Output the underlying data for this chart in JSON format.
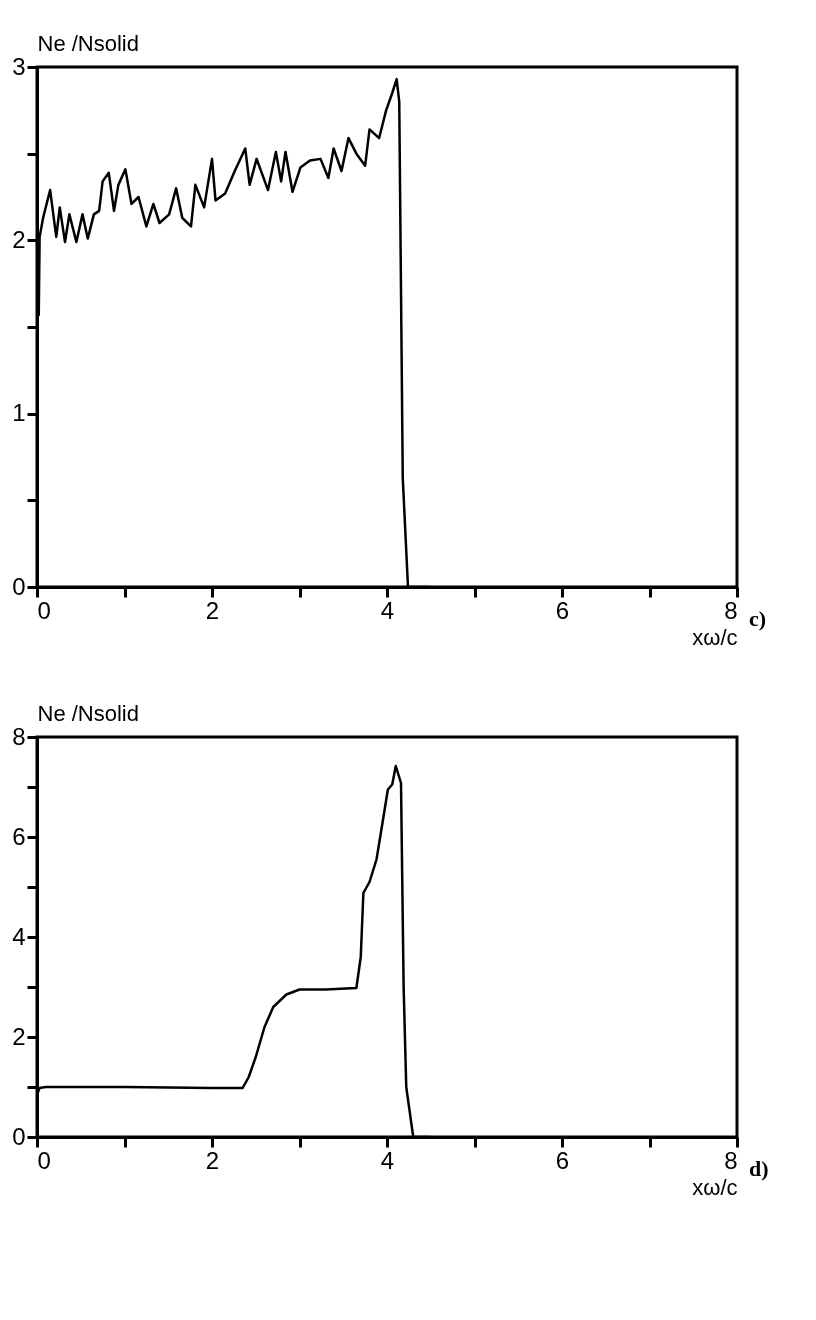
{
  "chart_data": [
    {
      "type": "line",
      "ylabel": "Ne /Nsolid",
      "xlabel": "xω/c",
      "annotations": [
        "c)"
      ],
      "grid": false,
      "x": [
        0.0,
        0.02,
        0.03,
        0.07,
        0.15,
        0.22,
        0.26,
        0.32,
        0.37,
        0.45,
        0.52,
        0.58,
        0.65,
        0.71,
        0.75,
        0.82,
        0.88,
        0.93,
        1.01,
        1.08,
        1.16,
        1.25,
        1.33,
        1.4,
        1.51,
        1.59,
        1.66,
        1.76,
        1.81,
        1.91,
        2.0,
        2.04,
        2.15,
        2.26,
        2.38,
        2.43,
        2.51,
        2.64,
        2.73,
        2.79,
        2.84,
        2.92,
        3.01,
        3.12,
        3.24,
        3.33,
        3.39,
        3.48,
        3.56,
        3.65,
        3.75,
        3.8,
        3.91,
        3.99,
        4.06,
        4.11,
        4.14,
        4.18,
        4.24,
        4.5
      ],
      "series": [
        {
          "color": "#000000",
          "values": [
            2.0,
            1.57,
            2.02,
            2.13,
            2.29,
            2.02,
            2.19,
            1.99,
            2.15,
            1.99,
            2.15,
            2.01,
            2.15,
            2.17,
            2.34,
            2.39,
            2.17,
            2.32,
            2.41,
            2.21,
            2.25,
            2.08,
            2.21,
            2.1,
            2.15,
            2.3,
            2.13,
            2.08,
            2.32,
            2.19,
            2.47,
            2.23,
            2.27,
            2.4,
            2.53,
            2.32,
            2.47,
            2.29,
            2.51,
            2.34,
            2.51,
            2.28,
            2.42,
            2.46,
            2.47,
            2.36,
            2.53,
            2.4,
            2.59,
            2.5,
            2.43,
            2.64,
            2.59,
            2.75,
            2.85,
            2.93,
            2.8,
            0.63,
            0.0,
            0.0
          ]
        }
      ],
      "xlim": [
        0,
        8
      ],
      "ylim": [
        0,
        3
      ],
      "xticks": [
        0,
        {
          "value": 1,
          "label": null
        },
        2,
        {
          "value": 3,
          "label": null
        },
        4,
        {
          "value": 5,
          "label": null
        },
        6,
        {
          "value": 7,
          "label": null
        },
        8
      ],
      "yticks": [
        0,
        {
          "value": 0.5,
          "label": null
        },
        1,
        {
          "value": 1.5,
          "label": null
        },
        2,
        {
          "value": 2.5,
          "label": null
        },
        3
      ]
    },
    {
      "type": "line",
      "ylabel": "Ne /Nsolid",
      "xlabel": "xω/c",
      "annotations": [
        "d)"
      ],
      "grid": false,
      "x": [
        0.0,
        0.03,
        0.1,
        1.0,
        2.0,
        2.35,
        2.42,
        2.5,
        2.6,
        2.7,
        2.85,
        3.0,
        3.3,
        3.65,
        3.7,
        3.73,
        3.8,
        3.88,
        3.95,
        4.01,
        4.06,
        4.1,
        4.16,
        4.19,
        4.22,
        4.3,
        4.5
      ],
      "series": [
        {
          "color": "#000000",
          "values": [
            0.85,
            0.98,
            1.0,
            1.0,
            0.98,
            0.98,
            1.2,
            1.6,
            2.2,
            2.6,
            2.85,
            2.95,
            2.95,
            2.98,
            3.6,
            4.88,
            5.1,
            5.55,
            6.3,
            6.95,
            7.05,
            7.42,
            7.08,
            3.0,
            1.0,
            0.0,
            0.0
          ]
        }
      ],
      "xlim": [
        0,
        8
      ],
      "ylim": [
        0,
        8
      ],
      "xticks": [
        0,
        {
          "value": 1,
          "label": null
        },
        2,
        {
          "value": 3,
          "label": null
        },
        4,
        {
          "value": 5,
          "label": null
        },
        6,
        {
          "value": 7,
          "label": null
        },
        8
      ],
      "yticks": [
        0,
        {
          "value": 1,
          "label": null
        },
        2,
        {
          "value": 3,
          "label": null
        },
        4,
        {
          "value": 5,
          "label": null
        },
        6,
        {
          "value": 7,
          "label": null
        },
        8
      ]
    }
  ]
}
